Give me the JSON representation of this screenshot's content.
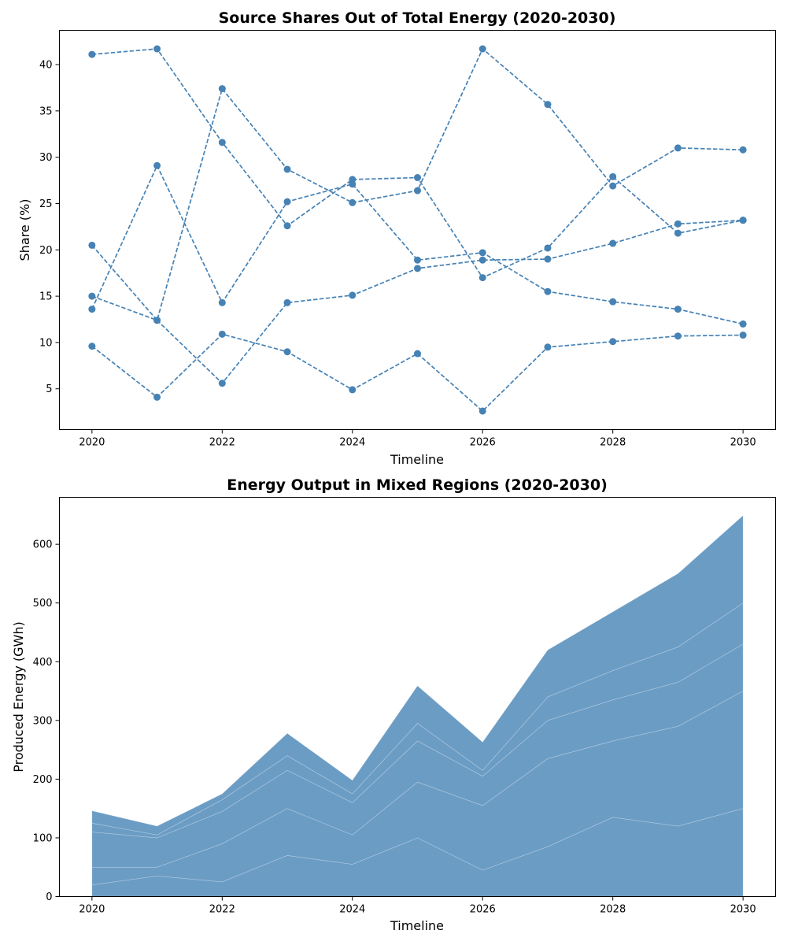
{
  "chart_data": [
    {
      "type": "line",
      "title": "Source Shares Out of Total Energy (2020-2030)",
      "xlabel": "Timeline",
      "ylabel": "Share (%)",
      "x": [
        2020,
        2021,
        2022,
        2023,
        2024,
        2025,
        2026,
        2027,
        2028,
        2029,
        2030
      ],
      "xticks": [
        2020,
        2022,
        2024,
        2026,
        2028,
        2030
      ],
      "yticks": [
        5,
        10,
        15,
        20,
        25,
        30,
        35,
        40
      ],
      "xlim": [
        2019.5,
        2030.5
      ],
      "ylim": [
        0.6,
        43.7
      ],
      "grid": false,
      "line_style": "dashed",
      "marker": "circle",
      "color": "#4682b4",
      "series": [
        {
          "values": [
            41.1,
            41.7,
            31.6,
            22.6,
            27.6,
            27.8,
            17.0,
            20.2,
            27.9,
            21.8,
            23.2
          ]
        },
        {
          "values": [
            13.6,
            29.1,
            14.3,
            25.2,
            27.1,
            18.9,
            19.7,
            15.5,
            14.4,
            13.6,
            12.0
          ]
        },
        {
          "values": [
            20.5,
            12.4,
            37.4,
            28.7,
            25.1,
            26.4,
            41.7,
            35.7,
            26.9,
            31.0,
            30.8
          ]
        },
        {
          "values": [
            15.0,
            12.4,
            5.6,
            14.3,
            15.1,
            18.0,
            18.9,
            19.0,
            20.7,
            22.8,
            23.2
          ]
        },
        {
          "values": [
            9.6,
            4.1,
            10.9,
            9.0,
            4.9,
            8.8,
            2.6,
            9.5,
            10.1,
            10.7,
            10.8
          ]
        }
      ]
    },
    {
      "type": "area",
      "stacked": true,
      "title": "Energy Output in Mixed Regions (2020-2030)",
      "xlabel": "Timeline",
      "ylabel": "Produced Energy (GWh)",
      "x": [
        2020,
        2021,
        2022,
        2023,
        2024,
        2025,
        2026,
        2027,
        2028,
        2029,
        2030
      ],
      "xticks": [
        2020,
        2022,
        2024,
        2026,
        2028,
        2030
      ],
      "yticks": [
        0,
        100,
        200,
        300,
        400,
        500,
        600
      ],
      "xlim": [
        2019.5,
        2030.5
      ],
      "ylim": [
        0,
        680
      ],
      "grid": false,
      "color": "#6b9cc4",
      "series": [
        {
          "values": [
            20,
            35,
            25,
            70,
            55,
            100,
            45,
            85,
            135,
            120,
            150
          ]
        },
        {
          "values": [
            30,
            15,
            65,
            80,
            50,
            95,
            110,
            150,
            130,
            170,
            200
          ]
        },
        {
          "values": [
            60,
            50,
            55,
            65,
            55,
            70,
            50,
            65,
            70,
            75,
            80
          ]
        },
        {
          "values": [
            15,
            5,
            20,
            25,
            15,
            30,
            10,
            40,
            50,
            60,
            70
          ]
        },
        {
          "values": [
            21,
            15,
            10,
            38,
            23,
            64,
            48,
            80,
            100,
            125,
            149
          ]
        }
      ]
    }
  ]
}
